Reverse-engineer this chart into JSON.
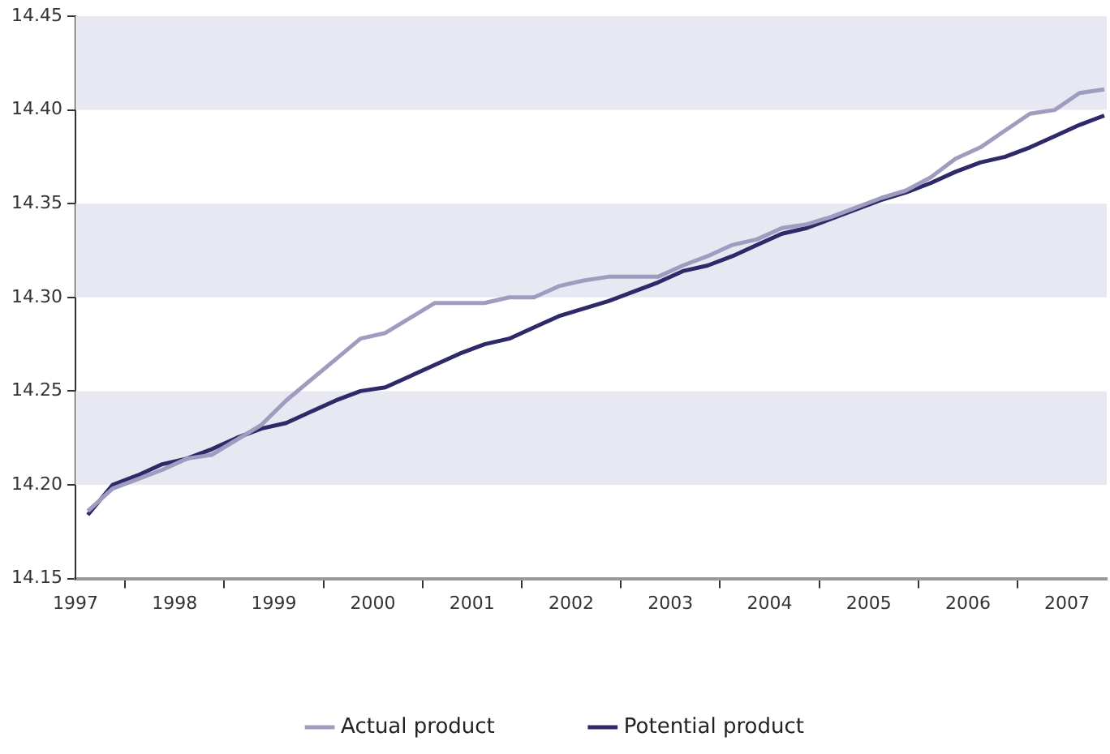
{
  "chart_data": {
    "type": "line",
    "x": [
      1997.625,
      1997.875,
      1998.125,
      1998.375,
      1998.625,
      1998.875,
      1999.125,
      1999.375,
      1999.625,
      1999.875,
      2000.125,
      2000.375,
      2000.625,
      2000.875,
      2001.125,
      2001.375,
      2001.625,
      2001.875,
      2002.125,
      2002.375,
      2002.625,
      2002.875,
      2003.125,
      2003.375,
      2003.625,
      2003.875,
      2004.125,
      2004.375,
      2004.625,
      2004.875,
      2005.125,
      2005.375,
      2005.625,
      2005.875,
      2006.125,
      2006.375,
      2006.625,
      2006.875,
      2007.125,
      2007.375,
      2007.625,
      2007.875
    ],
    "series": [
      {
        "name": "Actual product",
        "color": "#a09cc0",
        "values": [
          14.186,
          14.198,
          14.203,
          14.208,
          14.214,
          14.216,
          14.224,
          14.232,
          14.245,
          14.256,
          14.267,
          14.278,
          14.281,
          14.289,
          14.297,
          14.297,
          14.297,
          14.3,
          14.3,
          14.306,
          14.309,
          14.311,
          14.311,
          14.311,
          14.317,
          14.322,
          14.328,
          14.331,
          14.337,
          14.339,
          14.343,
          14.348,
          14.353,
          14.357,
          14.364,
          14.374,
          14.38,
          14.389,
          14.398,
          14.4,
          14.409,
          14.411
        ]
      },
      {
        "name": "Potential product",
        "color": "#2e2a6a",
        "values": [
          14.184,
          14.2,
          14.205,
          14.211,
          14.214,
          14.219,
          14.225,
          14.23,
          14.233,
          14.239,
          14.245,
          14.25,
          14.252,
          14.258,
          14.264,
          14.27,
          14.275,
          14.278,
          14.284,
          14.29,
          14.294,
          14.298,
          14.303,
          14.308,
          14.314,
          14.317,
          14.322,
          14.328,
          14.334,
          14.337,
          14.342,
          14.347,
          14.352,
          14.356,
          14.361,
          14.367,
          14.372,
          14.375,
          14.38,
          14.386,
          14.392,
          14.397
        ]
      }
    ],
    "xlim": [
      1997.5,
      2007.9
    ],
    "xticks": [
      {
        "value": 1997.5,
        "label": "1997"
      },
      {
        "value": 1998,
        "label": null
      },
      {
        "value": 1998.5,
        "label": "1998"
      },
      {
        "value": 1999,
        "label": null
      },
      {
        "value": 1999.5,
        "label": "1999"
      },
      {
        "value": 2000,
        "label": null
      },
      {
        "value": 2000.5,
        "label": "2000"
      },
      {
        "value": 2001,
        "label": null
      },
      {
        "value": 2001.5,
        "label": "2001"
      },
      {
        "value": 2002,
        "label": null
      },
      {
        "value": 2002.5,
        "label": "2002"
      },
      {
        "value": 2003,
        "label": null
      },
      {
        "value": 2003.5,
        "label": "2003"
      },
      {
        "value": 2004,
        "label": null
      },
      {
        "value": 2004.5,
        "label": "2004"
      },
      {
        "value": 2005,
        "label": null
      },
      {
        "value": 2005.5,
        "label": "2005"
      },
      {
        "value": 2006,
        "label": null
      },
      {
        "value": 2006.5,
        "label": "2006"
      },
      {
        "value": 2007,
        "label": null
      },
      {
        "value": 2007.5,
        "label": "2007"
      }
    ],
    "ylim": [
      14.15,
      14.45
    ],
    "yticks": [
      {
        "value": 14.15,
        "label": "14.15"
      },
      {
        "value": 14.2,
        "label": "14.20"
      },
      {
        "value": 14.25,
        "label": "14.25"
      },
      {
        "value": 14.3,
        "label": "14.30"
      },
      {
        "value": 14.35,
        "label": "14.35"
      },
      {
        "value": 14.4,
        "label": "14.40"
      },
      {
        "value": 14.45,
        "label": "14.45"
      }
    ],
    "bands": [
      {
        "axis": "y",
        "from": 14.2,
        "to": 14.25,
        "color": "#e8e8f2"
      },
      {
        "axis": "y",
        "from": 14.3,
        "to": 14.35,
        "color": "#e8e8f2"
      },
      {
        "axis": "y",
        "from": 14.4,
        "to": 14.45,
        "color": "#e8e8f2"
      }
    ],
    "grid": false,
    "legend": "bottom",
    "marker": "none",
    "line_style": "solid"
  }
}
